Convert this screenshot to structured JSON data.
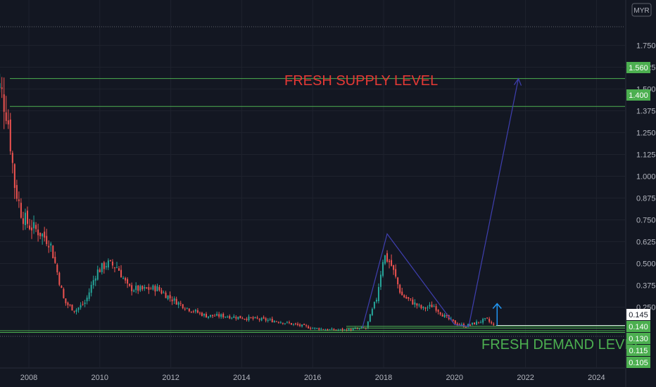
{
  "chart_data": {
    "type": "candlestick",
    "currency": "MYR",
    "y_ticks": [
      "1.750",
      "1.625",
      "1.500",
      "1.375",
      "1.250",
      "1.125",
      "1.000",
      "0.875",
      "0.750",
      "0.625",
      "0.500",
      "0.375",
      "0.250"
    ],
    "y_tick_values": [
      1.75,
      1.625,
      1.5,
      1.375,
      1.25,
      1.125,
      1.0,
      0.875,
      0.75,
      0.625,
      0.5,
      0.375,
      0.25
    ],
    "x_ticks": [
      "2008",
      "2010",
      "2012",
      "2014",
      "2016",
      "2018",
      "2020",
      "2022",
      "2024"
    ],
    "price_labels": [
      {
        "text": "1.560",
        "style": "green"
      },
      {
        "text": "1.400",
        "style": "green"
      },
      {
        "text": "0.145",
        "style": "white"
      },
      {
        "text": "0.140",
        "style": "green"
      },
      {
        "text": "0.130",
        "style": "green"
      },
      {
        "text": "0.115",
        "style": "green"
      },
      {
        "text": "0.105",
        "style": "green"
      }
    ],
    "levels": {
      "supply": [
        1.56,
        1.4
      ],
      "demand": [
        0.14,
        0.13,
        0.115,
        0.105
      ],
      "current": 0.145
    },
    "annotations": {
      "supply_label": "FRESH SUPPLY LEVEL",
      "demand_label": "FRESH DEMAND LEVEL"
    },
    "colors": {
      "background": "#131722",
      "up": "#26a69a",
      "down": "#ef5350",
      "level": "#4caf50",
      "supply_text": "#e53935",
      "demand_text": "#4caf50",
      "projection": "#3f3fb0",
      "arrow_small": "#2196f3"
    },
    "closes": [
      {
        "x": 2007.0,
        "y": 1.55
      },
      {
        "x": 2007.2,
        "y": 1.5
      },
      {
        "x": 2007.4,
        "y": 1.35
      },
      {
        "x": 2007.6,
        "y": 0.95
      },
      {
        "x": 2007.8,
        "y": 0.78
      },
      {
        "x": 2008.0,
        "y": 0.72
      },
      {
        "x": 2008.3,
        "y": 0.68
      },
      {
        "x": 2008.6,
        "y": 0.62
      },
      {
        "x": 2008.8,
        "y": 0.45
      },
      {
        "x": 2009.0,
        "y": 0.28
      },
      {
        "x": 2009.3,
        "y": 0.23
      },
      {
        "x": 2009.6,
        "y": 0.28
      },
      {
        "x": 2009.9,
        "y": 0.45
      },
      {
        "x": 2010.2,
        "y": 0.5
      },
      {
        "x": 2010.5,
        "y": 0.48
      },
      {
        "x": 2010.8,
        "y": 0.36
      },
      {
        "x": 2011.2,
        "y": 0.35
      },
      {
        "x": 2011.6,
        "y": 0.36
      },
      {
        "x": 2012.0,
        "y": 0.3
      },
      {
        "x": 2012.5,
        "y": 0.24
      },
      {
        "x": 2013.0,
        "y": 0.2
      },
      {
        "x": 2013.5,
        "y": 0.2
      },
      {
        "x": 2014.0,
        "y": 0.19
      },
      {
        "x": 2014.5,
        "y": 0.18
      },
      {
        "x": 2015.0,
        "y": 0.17
      },
      {
        "x": 2015.5,
        "y": 0.15
      },
      {
        "x": 2016.0,
        "y": 0.13
      },
      {
        "x": 2016.5,
        "y": 0.12
      },
      {
        "x": 2017.0,
        "y": 0.12
      },
      {
        "x": 2017.5,
        "y": 0.13
      },
      {
        "x": 2017.8,
        "y": 0.3
      },
      {
        "x": 2018.0,
        "y": 0.55
      },
      {
        "x": 2018.2,
        "y": 0.5
      },
      {
        "x": 2018.5,
        "y": 0.32
      },
      {
        "x": 2018.8,
        "y": 0.28
      },
      {
        "x": 2019.1,
        "y": 0.24
      },
      {
        "x": 2019.4,
        "y": 0.26
      },
      {
        "x": 2019.7,
        "y": 0.2
      },
      {
        "x": 2020.0,
        "y": 0.16
      },
      {
        "x": 2020.3,
        "y": 0.14
      },
      {
        "x": 2020.6,
        "y": 0.16
      },
      {
        "x": 2020.9,
        "y": 0.18
      },
      {
        "x": 2021.1,
        "y": 0.145
      }
    ]
  }
}
